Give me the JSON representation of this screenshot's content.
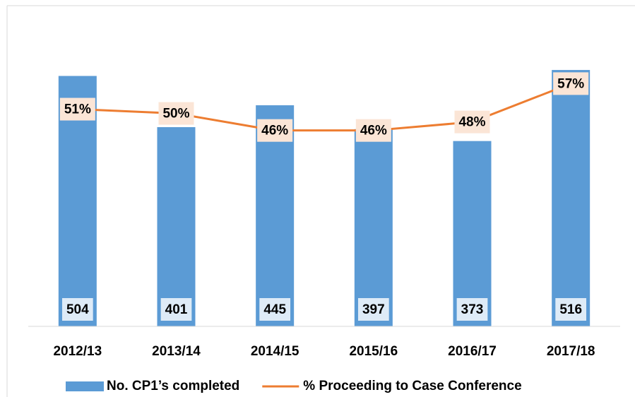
{
  "chart_data": {
    "type": "bar-line",
    "categories": [
      "2012/13",
      "2013/14",
      "2014/15",
      "2015/16",
      "2016/17",
      "2017/18"
    ],
    "series": [
      {
        "name": "No. CP1’s completed",
        "type": "bar",
        "color": "#5b9bd5",
        "values": [
          504,
          401,
          445,
          397,
          373,
          516
        ]
      },
      {
        "name": "% Proceeding to Case Conference",
        "type": "line",
        "axis": "y2",
        "color": "#ed7d31",
        "values": [
          51,
          50,
          46,
          46,
          48,
          57
        ],
        "value_labels": [
          "51%",
          "50%",
          "46%",
          "46%",
          "48%",
          "57%"
        ]
      }
    ],
    "ylim": [
      0,
      600
    ],
    "y2lim": [
      0,
      70
    ],
    "legend": "bottom"
  }
}
